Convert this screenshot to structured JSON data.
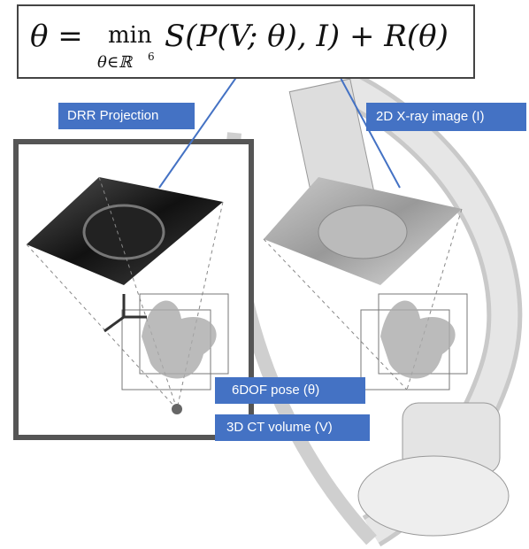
{
  "equation": {
    "lhs": "θ =",
    "operator": "min",
    "subscript": "θ∈ℝ",
    "subscript_power": "6",
    "rhs": "S(P(V; θ), I) + R(θ)"
  },
  "labels": {
    "drr": "DRR Projection",
    "xray": "2D X-ray image (I)",
    "pose": "6DOF pose (θ)",
    "volume": "3D CT volume (V)"
  }
}
